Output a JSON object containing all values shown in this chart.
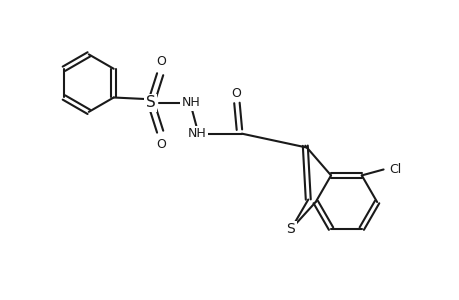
{
  "background_color": "#ffffff",
  "line_color": "#1a1a1a",
  "line_width": 1.5,
  "font_size": 9,
  "fig_width": 4.6,
  "fig_height": 3.0,
  "dpi": 100,
  "xlim": [
    -4.6,
    4.6
  ],
  "ylim": [
    -3.0,
    3.0
  ]
}
